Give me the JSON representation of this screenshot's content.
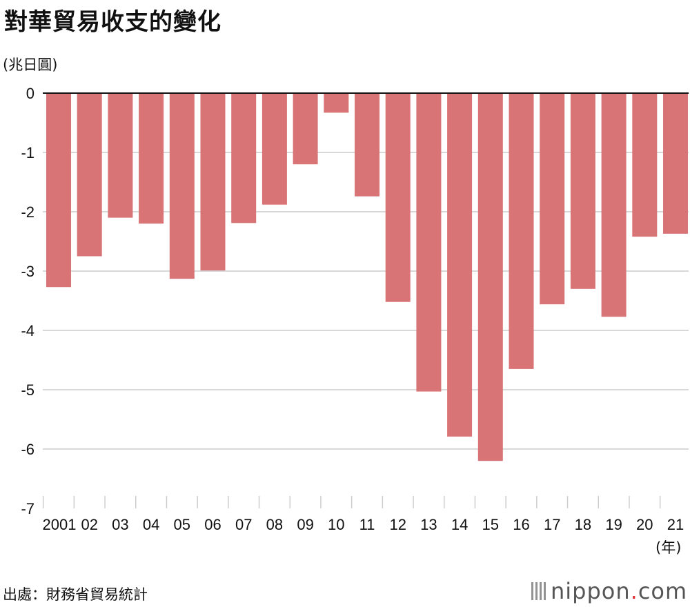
{
  "header": {
    "title": "對華貿易收支的變化",
    "unit": "(兆日圓)"
  },
  "footer": {
    "year_unit": "(年)",
    "source": "出處：財務省貿易統計",
    "logo_text": "nippon",
    "logo_dot": ".",
    "logo_suffix": "com"
  },
  "colors": {
    "bar": "#d97476",
    "grid": "#cccccc",
    "axis": "#111111"
  },
  "chart_data": {
    "type": "bar",
    "title": "對華貿易收支的變化",
    "ylabel": "(兆日圓)",
    "xlabel": "(年)",
    "categories": [
      "2001",
      "02",
      "03",
      "04",
      "05",
      "06",
      "07",
      "08",
      "09",
      "10",
      "11",
      "12",
      "13",
      "14",
      "15",
      "16",
      "17",
      "18",
      "19",
      "20",
      "21"
    ],
    "values": [
      -3.27,
      -2.75,
      -2.1,
      -2.2,
      -3.13,
      -2.99,
      -2.19,
      -1.88,
      -1.2,
      -0.33,
      -1.74,
      -3.52,
      -5.03,
      -5.79,
      -6.2,
      -4.65,
      -3.56,
      -3.3,
      -3.77,
      -2.42,
      -2.37
    ],
    "ylim": [
      -7,
      0
    ],
    "yticks": [
      "0",
      "-1",
      "-2",
      "-3",
      "-4",
      "-5",
      "-6",
      "-7"
    ],
    "grid": true,
    "legend": "none"
  }
}
